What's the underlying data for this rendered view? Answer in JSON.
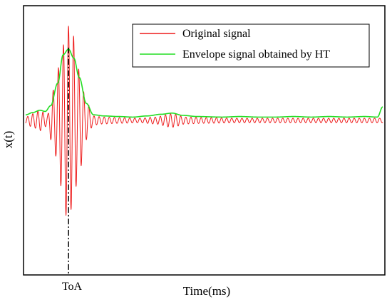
{
  "chart_data": {
    "type": "line",
    "title": "",
    "xlabel": "Time(ms)",
    "ylabel": "x(t)",
    "x_tick_labels": [
      "ToA"
    ],
    "toa_x": 0.12,
    "xlim": [
      0,
      1
    ],
    "ylim": [
      -1.35,
      1.0
    ],
    "grid": false,
    "legend_position": "top-right",
    "series": [
      {
        "name": "Original signal",
        "color": "#ee1c1c",
        "kind": "oscillation",
        "carrier_cycles_per_unit": 70,
        "points": [
          [
            0.0,
            0.03
          ],
          [
            0.02,
            0.06
          ],
          [
            0.04,
            0.09
          ],
          [
            0.06,
            0.05
          ],
          [
            0.08,
            0.28
          ],
          [
            0.1,
            0.58
          ],
          [
            0.115,
            0.85
          ],
          [
            0.13,
            0.78
          ],
          [
            0.15,
            0.45
          ],
          [
            0.17,
            0.17
          ],
          [
            0.19,
            0.04
          ],
          [
            0.22,
            0.03
          ],
          [
            0.26,
            0.025
          ],
          [
            0.32,
            0.02
          ],
          [
            0.36,
            0.03
          ],
          [
            0.41,
            0.06
          ],
          [
            0.45,
            0.03
          ],
          [
            0.5,
            0.025
          ],
          [
            0.6,
            0.02
          ],
          [
            0.7,
            0.02
          ],
          [
            0.8,
            0.02
          ],
          [
            0.9,
            0.02
          ],
          [
            1.0,
            0.02
          ]
        ]
      },
      {
        "name": "Envelope signal obtained by HT",
        "color": "#22dd22",
        "kind": "envelope",
        "points": [
          [
            0.0,
            0.05
          ],
          [
            0.02,
            0.07
          ],
          [
            0.04,
            0.09
          ],
          [
            0.055,
            0.08
          ],
          [
            0.07,
            0.13
          ],
          [
            0.09,
            0.33
          ],
          [
            0.105,
            0.58
          ],
          [
            0.12,
            0.63
          ],
          [
            0.135,
            0.55
          ],
          [
            0.15,
            0.38
          ],
          [
            0.17,
            0.15
          ],
          [
            0.19,
            0.05
          ],
          [
            0.22,
            0.04
          ],
          [
            0.26,
            0.035
          ],
          [
            0.3,
            0.03
          ],
          [
            0.34,
            0.04
          ],
          [
            0.38,
            0.055
          ],
          [
            0.41,
            0.065
          ],
          [
            0.44,
            0.045
          ],
          [
            0.48,
            0.035
          ],
          [
            0.55,
            0.03
          ],
          [
            0.6,
            0.035
          ],
          [
            0.65,
            0.03
          ],
          [
            0.7,
            0.03
          ],
          [
            0.75,
            0.035
          ],
          [
            0.8,
            0.03
          ],
          [
            0.85,
            0.035
          ],
          [
            0.9,
            0.03
          ],
          [
            0.95,
            0.035
          ],
          [
            0.985,
            0.03
          ],
          [
            1.0,
            0.12
          ]
        ]
      }
    ]
  }
}
